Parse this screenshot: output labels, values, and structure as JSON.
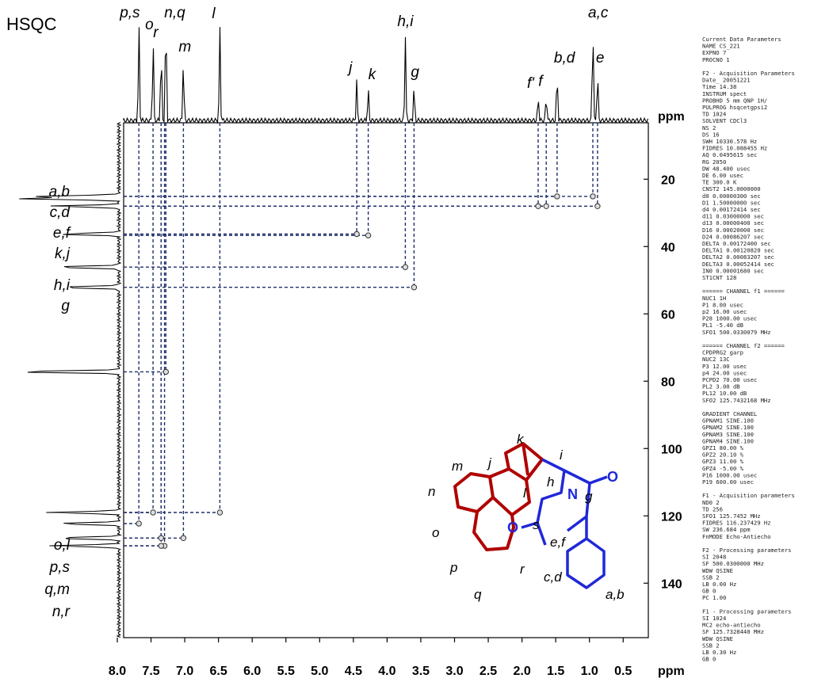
{
  "title": "HSQC",
  "chart_data": {
    "type": "scatter",
    "title": "HSQC",
    "xlabel": "ppm",
    "ylabel": "ppm",
    "xlim": [
      8.0,
      0.2
    ],
    "ylim": [
      0,
      150
    ],
    "x_ticks": [
      "8.0",
      "7.5",
      "7.0",
      "6.5",
      "6.0",
      "5.5",
      "5.0",
      "4.5",
      "4.0",
      "3.5",
      "3.0",
      "2.5",
      "2.0",
      "1.5",
      "1.0",
      "0.5"
    ],
    "y_ticks": [
      "20",
      "40",
      "60",
      "80",
      "100",
      "120",
      "140"
    ],
    "h_peaks": [
      {
        "label": "p,s",
        "x": 7.68,
        "h": 0.88
      },
      {
        "label": "o",
        "x": 7.47,
        "h": 0.75
      },
      {
        "label": "r",
        "x": 7.35,
        "h": 0.68
      },
      {
        "label": "n,q",
        "x": 7.28,
        "h": 1.0
      },
      {
        "label": "m",
        "x": 7.02,
        "h": 0.55
      },
      {
        "label": "l",
        "x": 6.48,
        "h": 0.85
      },
      {
        "label": "j",
        "x": 4.45,
        "h": 0.36
      },
      {
        "label": "k",
        "x": 4.28,
        "h": 0.3
      },
      {
        "label": "h,i",
        "x": 3.73,
        "h": 0.78
      },
      {
        "label": "g",
        "x": 3.6,
        "h": 0.32
      },
      {
        "label": "f'",
        "x": 1.76,
        "h": 0.22
      },
      {
        "label": "f",
        "x": 1.64,
        "h": 0.24
      },
      {
        "label": "b,d",
        "x": 1.48,
        "h": 0.45
      },
      {
        "label": "a,c",
        "x": 0.95,
        "h": 0.9
      },
      {
        "label": "e",
        "x": 0.88,
        "h": 0.45
      }
    ],
    "c_peaks": [
      {
        "label": "a,b",
        "y": 25.1,
        "w": 0.72
      },
      {
        "label": "c,d",
        "y": 25.8,
        "w": 0.9
      },
      {
        "label": "e,f",
        "y": 28.0,
        "w": 0.62
      },
      {
        "label": "k,j",
        "y": 36.3,
        "w": 0.55
      },
      {
        "label": "h,i",
        "y": 46.1,
        "w": 0.6
      },
      {
        "label": "g",
        "y": 52.1,
        "w": 0.55
      },
      {
        "label": "",
        "y": 77.2,
        "w": 0.98
      },
      {
        "label": "o,l",
        "y": 119.0,
        "w": 0.65
      },
      {
        "label": "p,s",
        "y": 122.3,
        "w": 0.58
      },
      {
        "label": "q,m",
        "y": 126.6,
        "w": 0.6
      },
      {
        "label": "n,r",
        "y": 128.9,
        "w": 0.62
      }
    ],
    "correlations": [
      {
        "x": 0.88,
        "y": 28.0
      },
      {
        "x": 0.95,
        "y": 25.1
      },
      {
        "x": 1.48,
        "y": 25.1
      },
      {
        "x": 1.64,
        "y": 28.0
      },
      {
        "x": 1.76,
        "y": 28.0
      },
      {
        "x": 4.45,
        "y": 36.3
      },
      {
        "x": 4.28,
        "y": 36.7
      },
      {
        "x": 3.73,
        "y": 46.1
      },
      {
        "x": 3.6,
        "y": 52.1
      },
      {
        "x": 7.28,
        "y": 77.2
      },
      {
        "x": 6.48,
        "y": 119.0
      },
      {
        "x": 7.47,
        "y": 119.0
      },
      {
        "x": 7.68,
        "y": 122.3
      },
      {
        "x": 7.02,
        "y": 126.6
      },
      {
        "x": 7.35,
        "y": 126.6
      },
      {
        "x": 7.3,
        "y": 128.9
      },
      {
        "x": 7.35,
        "y": 128.9
      }
    ]
  },
  "molecule": {
    "labels": [
      "k",
      "j",
      "i",
      "m",
      "l",
      "h",
      "n",
      "g",
      "s",
      "o",
      "e,f",
      "p",
      "r",
      "c,d",
      "q",
      "a,b"
    ],
    "atoms": [
      "O",
      "O",
      "N"
    ]
  },
  "params": [
    "Current Data Parameters",
    "NAME        CS_221",
    "EXPNO            7",
    "PROCNO           1",
    "",
    "F2 - Acquisition Parameters",
    "Date_      20051221",
    "Time          14.38",
    "INSTRUM       spect",
    "PROBHD   5 mm QNP 1H/",
    "PULPROG   hsqcetgpsi2",
    "TD             1024",
    "SOLVENT       CDCl3",
    "NS                2",
    "DS               16",
    "SWH      10330.578 Hz",
    "FIDRES   10.088455 Hz",
    "AQ       0.0495615 sec",
    "RG             2050",
    "DW          48.400 usec",
    "DE            6.00 usec",
    "TE           300.0 K",
    "CNST2  145.0000000",
    "d0      0.00000300 sec",
    "D1      1.50000000 sec",
    "d4      0.00172414 sec",
    "d11     0.03000000 sec",
    "d13     0.00000400 sec",
    "D16     0.00020000 sec",
    "D24     0.00086207 sec",
    "DELTA   0.00172400 sec",
    "DELTA1  0.00120820 sec",
    "DELTA2  0.00083207 sec",
    "DELTA3  0.00052414 sec",
    "IN0     0.00001680 sec",
    "ST1CNT          128",
    "",
    "====== CHANNEL f1 ======",
    "NUC1             1H",
    "P1            8.00 usec",
    "p2           16.00 usec",
    "P28        1000.00 usec",
    "PL1          -5.40 dB",
    "SFO1  500.0330079 MHz",
    "",
    "====== CHANNEL f2 ======",
    "CPDPRG2        garp",
    "NUC2            13C",
    "P3           12.00 usec",
    "p4           24.00 usec",
    "PCPD2        70.00 usec",
    "PL2           3.00 dB",
    "PL12         10.00 dB",
    "SFO2  125.7432168 MHz",
    "",
    "GRADIENT CHANNEL",
    "GPNAM1     SINE.100",
    "GPNAM2     SINE.100",
    "GPNAM3     SINE.100",
    "GPNAM4     SINE.100",
    "GPZ1         80.00 %",
    "GPZ2         20.10 %",
    "GPZ3         11.00 %",
    "GPZ4         -5.00 %",
    "P16        1000.00 usec",
    "P19         600.00 usec",
    "",
    "F1 - Acquisition parameters",
    "ND0               2",
    "TD              256",
    "SFO1    125.7452 MHz",
    "FIDRES  116.237429 Hz",
    "SW        236.684 ppm",
    "FnMODE   Echo-Antiecho",
    "",
    "F2 - Processing parameters",
    "SI             2048",
    "SF     500.0300000 MHz",
    "WDW           QSINE",
    "SSB               2",
    "LB             0.00 Hz",
    "GB                0",
    "PC             1.00",
    "",
    "F1 - Processing parameters",
    "SI             1024",
    "MC2     echo-antiecho",
    "SF     125.7328440 MHz",
    "WDW           QSINE",
    "SSB               2",
    "LB             0.30 Hz",
    "GB                0"
  ]
}
